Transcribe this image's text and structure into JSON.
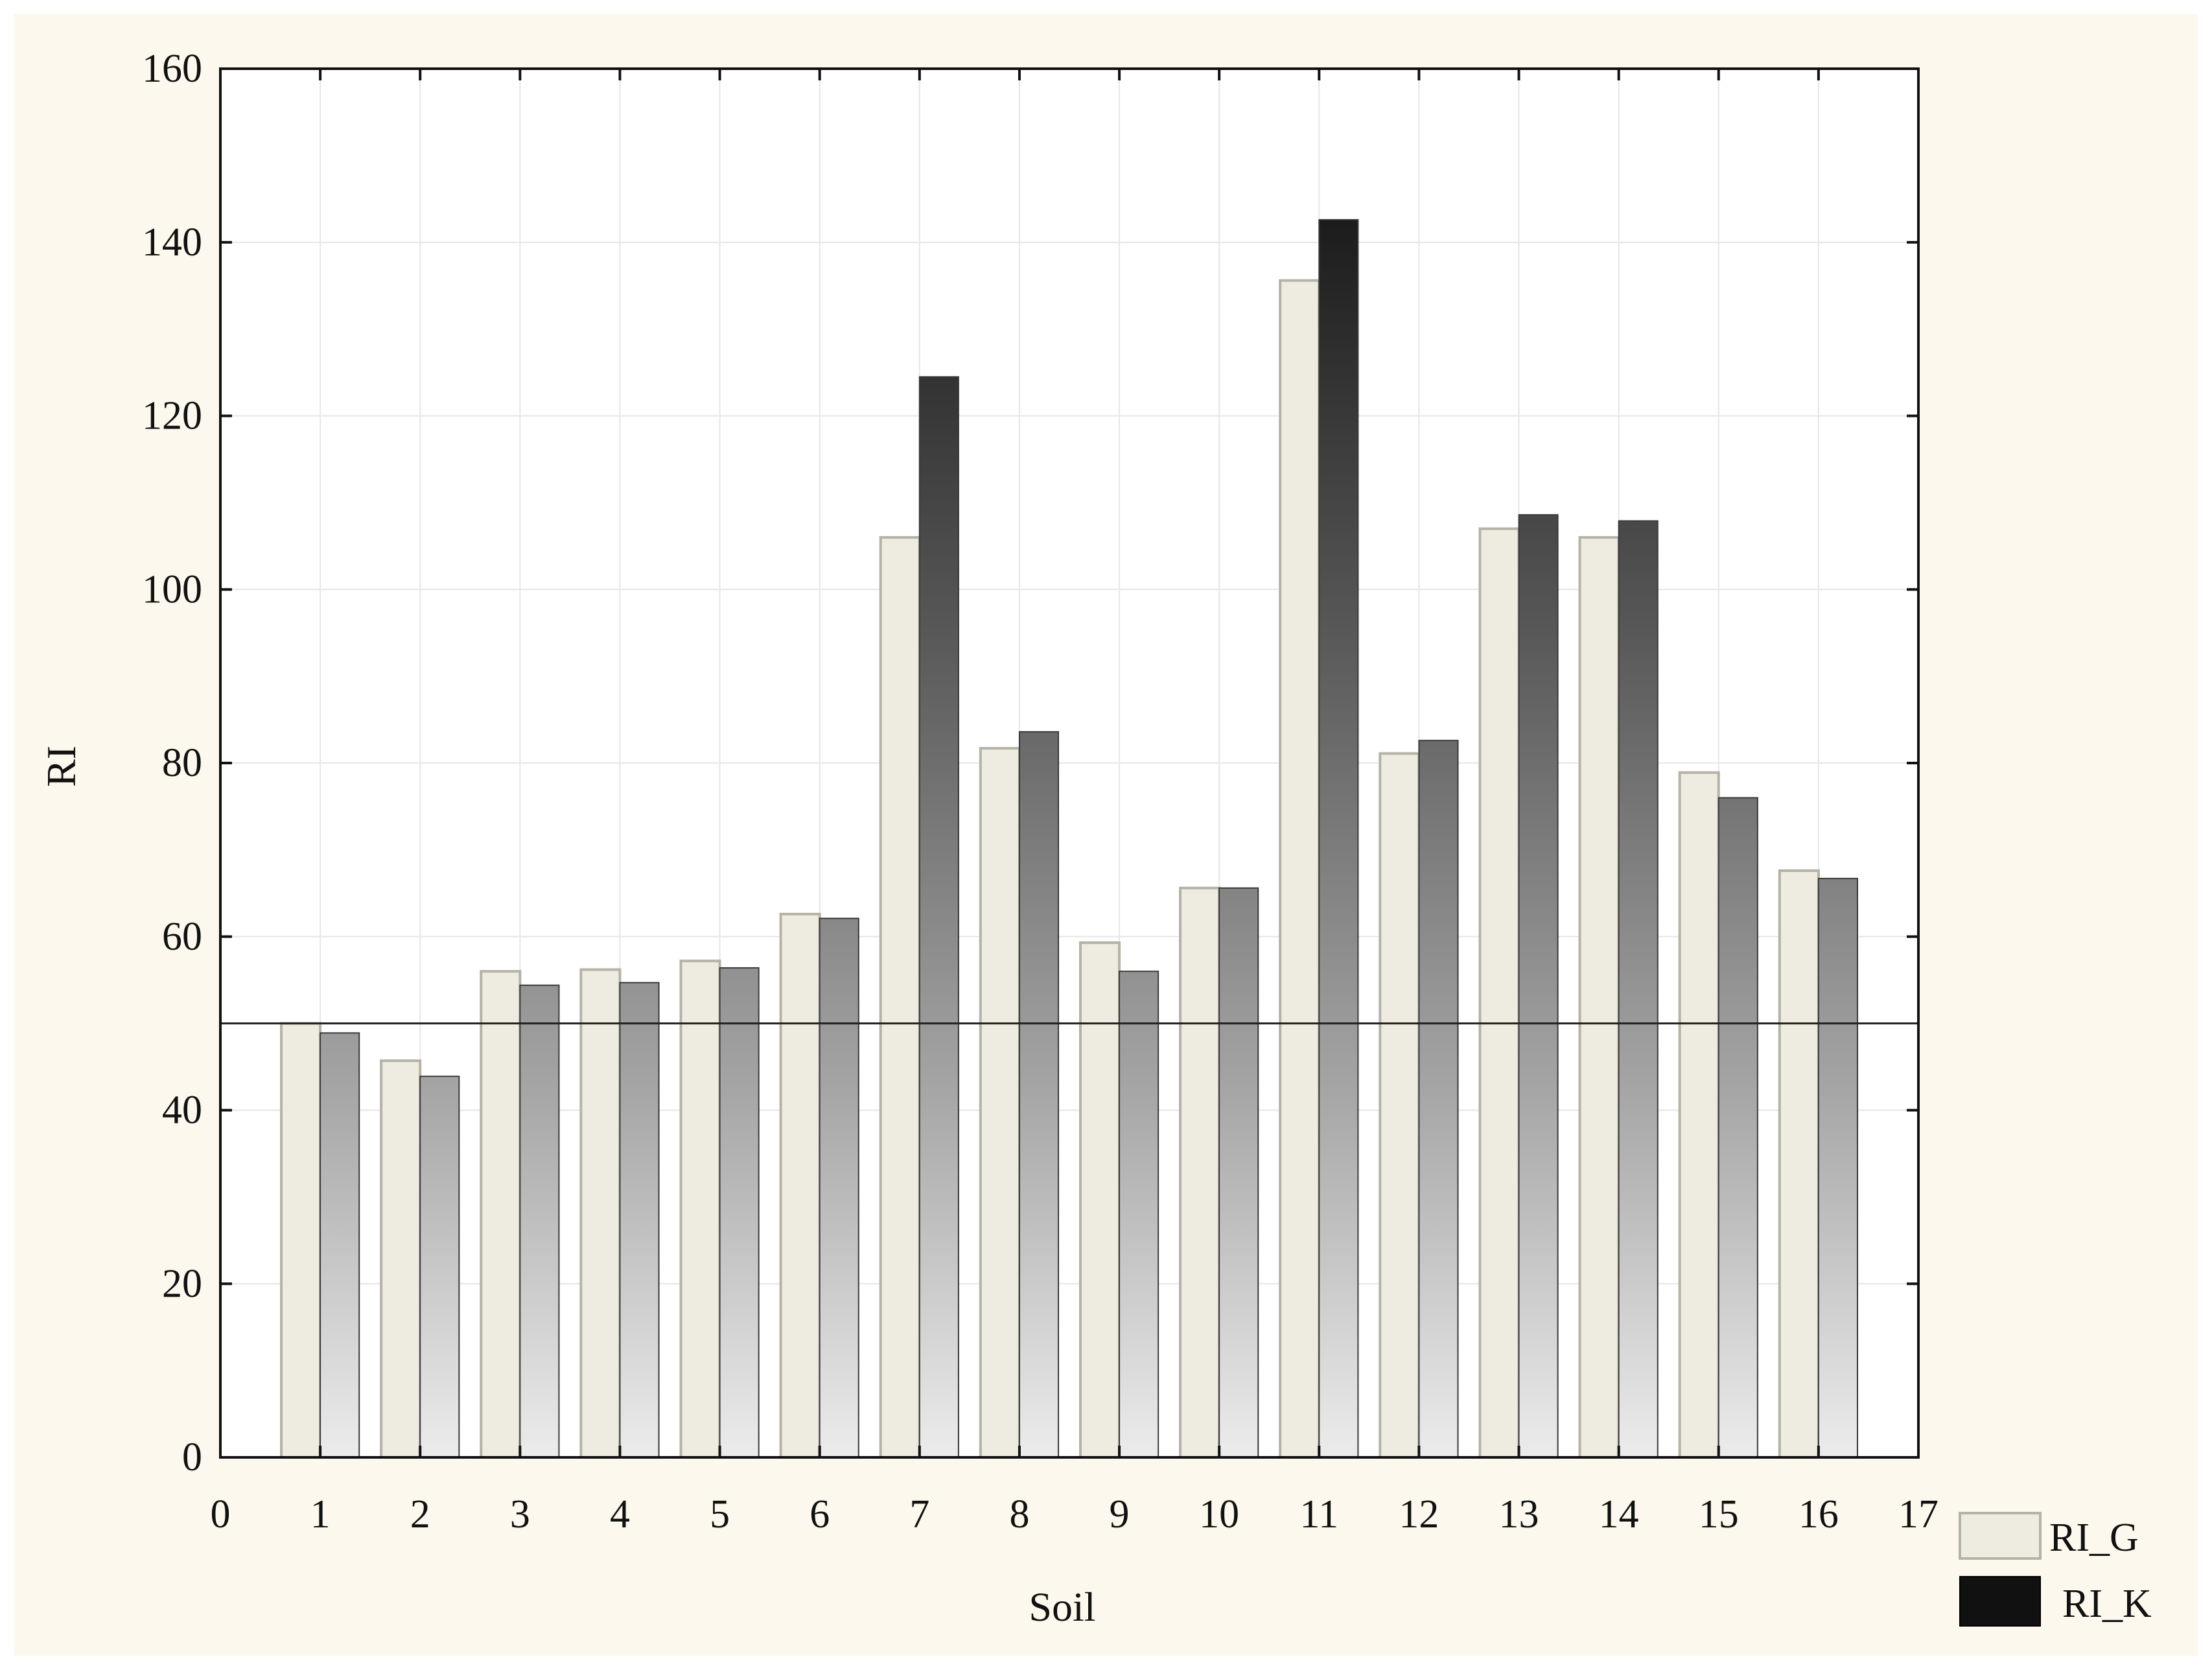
{
  "chart_data": {
    "type": "bar",
    "title": "",
    "xlabel": "Soil",
    "ylabel": "RI",
    "categories": [
      "1",
      "2",
      "3",
      "4",
      "5",
      "6",
      "7",
      "8",
      "9",
      "10",
      "11",
      "12",
      "13",
      "14",
      "15",
      "16"
    ],
    "x_ticks": [
      "0",
      "1",
      "2",
      "3",
      "4",
      "5",
      "6",
      "7",
      "8",
      "9",
      "10",
      "11",
      "12",
      "13",
      "14",
      "15",
      "16",
      "17"
    ],
    "y_ticks": [
      "0",
      "20",
      "40",
      "60",
      "80",
      "100",
      "120",
      "140",
      "160"
    ],
    "xlim": [
      0,
      17
    ],
    "ylim": [
      0,
      160
    ],
    "reference_line": 50,
    "grid": true,
    "legend_position": "bottom-right outside",
    "series": [
      {
        "name": "RI_G",
        "color": "#eeece0",
        "values": [
          50.0,
          45.7,
          56.0,
          56.2,
          57.2,
          62.6,
          106.0,
          81.7,
          59.3,
          65.6,
          135.6,
          81.1,
          107.0,
          106.0,
          78.9,
          67.6
        ]
      },
      {
        "name": "RI_K",
        "color": "#111111",
        "values": [
          48.9,
          43.9,
          54.4,
          54.7,
          56.4,
          62.1,
          124.5,
          83.6,
          56.0,
          65.6,
          142.6,
          82.6,
          108.6,
          107.9,
          76.0,
          66.7
        ]
      }
    ]
  }
}
